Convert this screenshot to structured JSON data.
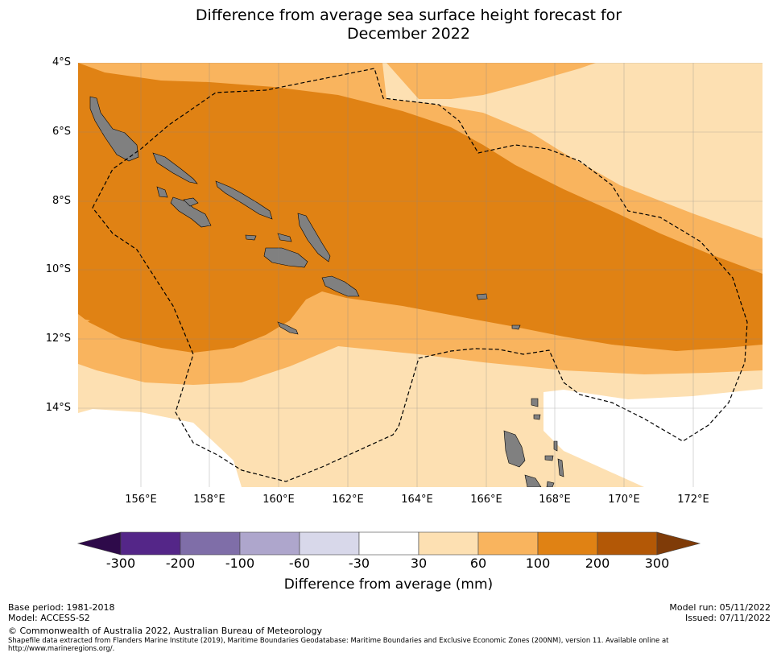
{
  "title_line1": "Difference from average sea surface height forecast for",
  "title_line2": "December 2022",
  "lat_labels": [
    "4°S",
    "6°S",
    "8°S",
    "10°S",
    "12°S",
    "14°S"
  ],
  "lon_labels": [
    "156°E",
    "158°E",
    "160°E",
    "162°E",
    "164°E",
    "166°E",
    "168°E",
    "170°E",
    "172°E"
  ],
  "colorbar": {
    "ticks": [
      "-300",
      "-200",
      "-100",
      "-60",
      "-30",
      "30",
      "60",
      "100",
      "200",
      "300"
    ],
    "colors": [
      "#2e0a4a",
      "#542688",
      "#7f6ea8",
      "#aea6cc",
      "#d8d8ea",
      "#ffffff",
      "#fde0b2",
      "#f9b45e",
      "#e08214",
      "#b35806",
      "#7f3b08"
    ],
    "label": "Difference from average (mm)"
  },
  "map_colors": {
    "class_30_60": "#fde0b2",
    "class_60_100": "#f9b45e",
    "class_100_200": "#e08214",
    "land": "#808080"
  },
  "footer": {
    "base_period": "Base period: 1981-2018",
    "model": "Model: ACCESS-S2",
    "model_run": "Model run: 05/11/2022",
    "issued": "Issued: 07/11/2022",
    "copyright": "© Commonwealth of Australia 2022, Australian Bureau of Meteorology",
    "shapefile_line1": "Shapefile data extracted from Flanders Marine Institute (2019), Maritime Boundaries Geodatabase: Maritime Boundaries and Exclusive Economic Zones (200NM), version 11. Available online at",
    "shapefile_line2": "http://www.marineregions.org/."
  }
}
